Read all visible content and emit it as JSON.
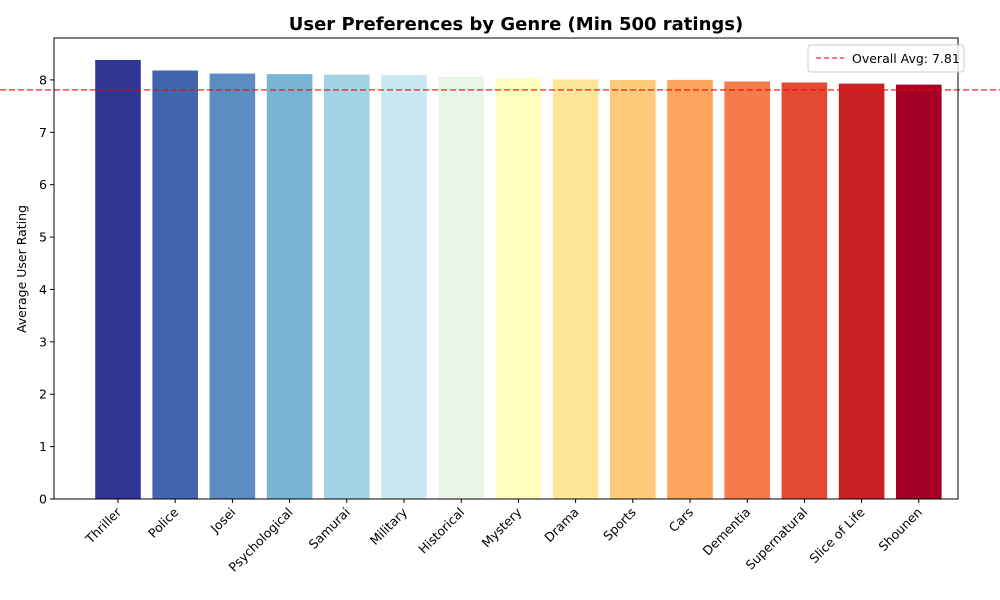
{
  "chart_data": {
    "type": "bar",
    "title": "User Preferences by Genre (Min 500 ratings)",
    "xlabel": "",
    "ylabel": "Average User Rating",
    "ylim": [
      0,
      8.8
    ],
    "yticks": [
      0,
      1,
      2,
      3,
      4,
      5,
      6,
      7,
      8
    ],
    "grid": false,
    "legend_position": "top-right",
    "categories": [
      "Thriller",
      "Police",
      "Josei",
      "Psychological",
      "Samurai",
      "Military",
      "Historical",
      "Mystery",
      "Drama",
      "Sports",
      "Cars",
      "Dementia",
      "Supernatural",
      "Slice of Life",
      "Shounen"
    ],
    "values": [
      8.38,
      8.18,
      8.12,
      8.11,
      8.1,
      8.09,
      8.06,
      8.03,
      8.01,
      8.0,
      8.0,
      7.97,
      7.95,
      7.93,
      7.91
    ],
    "colors": [
      "#313695",
      "#4165ae",
      "#5b8dc2",
      "#7ab3d4",
      "#a4d3e6",
      "#cae8f1",
      "#eaf5e7",
      "#feffbf",
      "#fee597",
      "#fecb7a",
      "#fda45d",
      "#f67b4a",
      "#e34a33",
      "#c82227",
      "#a50026"
    ],
    "reference_line": {
      "value": 7.81,
      "label": "Overall Avg: 7.81",
      "color": "#ff0000"
    }
  }
}
